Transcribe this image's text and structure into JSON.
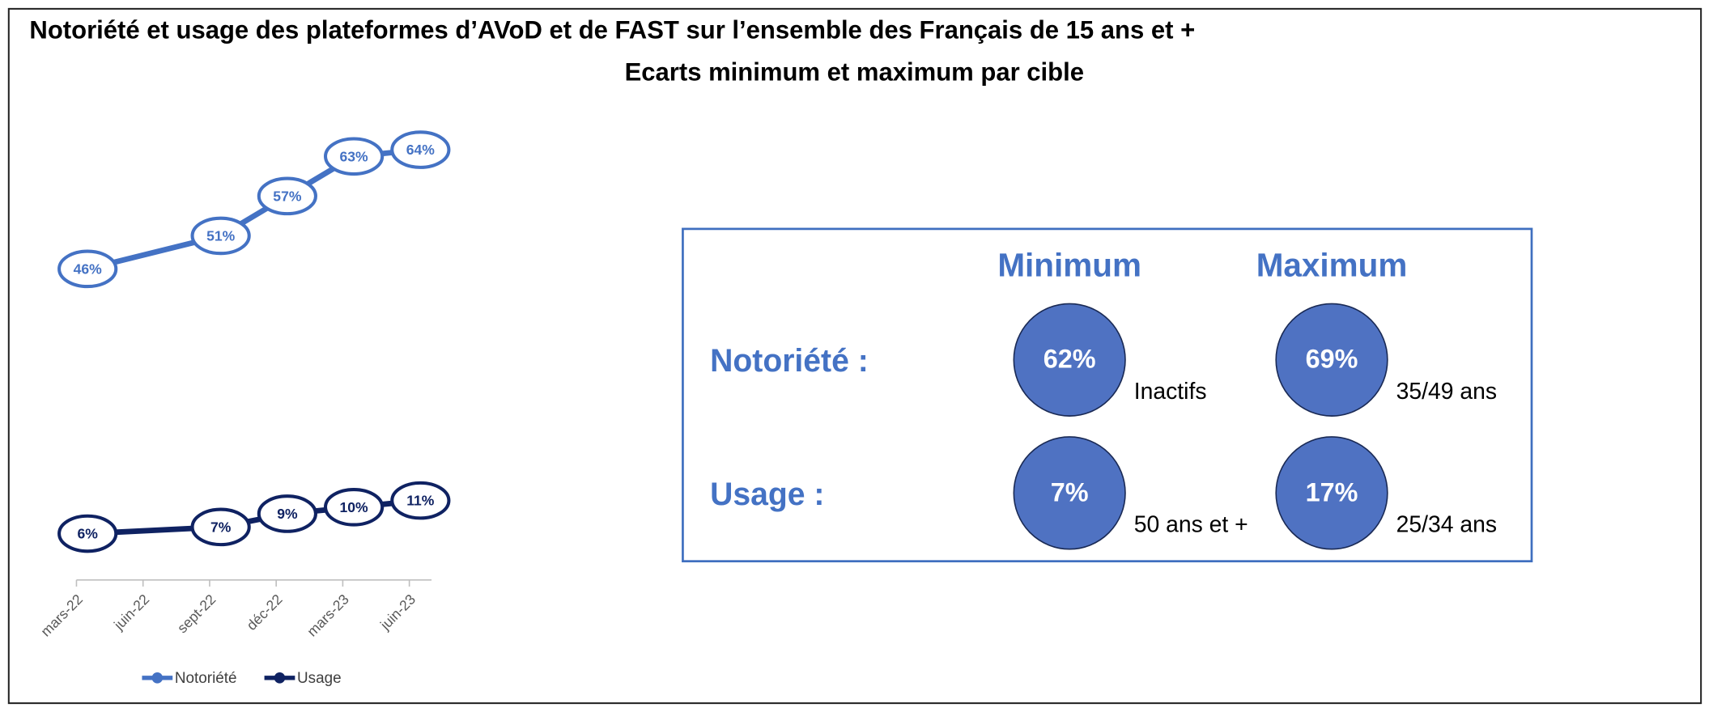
{
  "chart_data": {
    "type": "line",
    "title": "Notoriété et usage des plateformes d’AVoD et de FAST sur l’ensemble des Français de 15 ans et +",
    "subtitle": "Ecarts minimum et maximum par cible",
    "x": [
      0.5,
      6.5,
      9.5,
      12.5,
      15.5
    ],
    "xlim": [
      0,
      16
    ],
    "xticks": [
      {
        "value": 0,
        "label": "mars-22"
      },
      {
        "value": 3,
        "label": "juin-22"
      },
      {
        "value": 6,
        "label": "sept-22"
      },
      {
        "value": 9,
        "label": "déc-22"
      },
      {
        "value": 12,
        "label": "mars-23"
      },
      {
        "value": 15,
        "label": "juin-23"
      }
    ],
    "ylim": [
      -1,
      70
    ],
    "legend": "bottom",
    "series": [
      {
        "name": "Notoriété",
        "color": "#4472c4",
        "values": [
          46,
          51,
          57,
          63,
          64
        ],
        "value_labels": [
          "46%",
          "51%",
          "57%",
          "63%",
          "64%"
        ]
      },
      {
        "name": "Usage",
        "color": "#0f2262",
        "values": [
          6,
          7,
          9,
          10,
          11
        ],
        "value_labels": [
          "6%",
          "7%",
          "9%",
          "10%",
          "11%"
        ]
      }
    ]
  },
  "panel": {
    "columns": [
      "Minimum",
      "Maximum"
    ],
    "rows": [
      {
        "label": "Notoriété :",
        "cells": [
          {
            "value": "62%",
            "target": "Inactifs"
          },
          {
            "value": "69%",
            "target": "35/49 ans"
          }
        ]
      },
      {
        "label": "Usage :",
        "cells": [
          {
            "value": "7%",
            "target": "50 ans et +"
          },
          {
            "value": "17%",
            "target": "25/34 ans"
          }
        ]
      }
    ]
  }
}
